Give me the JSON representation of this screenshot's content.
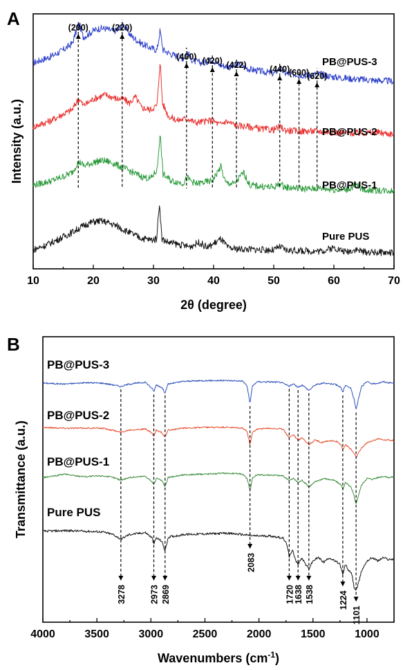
{
  "chart_data": [
    {
      "panel": "A",
      "type": "line",
      "xlabel": "2θ (degree)",
      "ylabel": "Intensity (a.u.)",
      "xlim": [
        10,
        70
      ],
      "xticks": [
        10,
        20,
        30,
        40,
        50,
        60,
        70
      ],
      "y_ticks_shown": false,
      "series": [
        {
          "name": "PB@PUS-3",
          "color": "#2b3ec8",
          "offset": 3.0,
          "x": [
            10,
            13,
            15,
            16.5,
            17.3,
            17.7,
            18.3,
            19,
            20,
            21,
            22,
            23,
            24,
            24.6,
            25,
            25.6,
            26.5,
            28,
            29.5,
            30.6,
            31.1,
            31.6,
            33,
            35,
            35.6,
            36.5,
            38,
            39.8,
            41,
            43,
            44,
            46,
            48,
            50,
            51,
            52,
            54,
            56,
            57.3,
            60,
            63,
            66,
            70
          ],
          "y": [
            0.55,
            0.7,
            0.85,
            1.0,
            1.35,
            1.45,
            1.15,
            1.2,
            1.3,
            1.35,
            1.35,
            1.3,
            1.3,
            1.4,
            1.45,
            1.3,
            1.15,
            1.0,
            0.9,
            0.85,
            1.3,
            0.85,
            0.75,
            0.65,
            0.8,
            0.6,
            0.55,
            0.62,
            0.5,
            0.45,
            0.52,
            0.4,
            0.35,
            0.3,
            0.42,
            0.3,
            0.28,
            0.25,
            0.3,
            0.22,
            0.18,
            0.15,
            0.12
          ]
        },
        {
          "name": "PB@PUS-2",
          "color": "#e8312f",
          "offset": 2.0,
          "x": [
            10,
            13,
            15,
            16.5,
            17.3,
            17.7,
            18.3,
            19,
            20,
            21,
            22,
            23,
            24,
            25,
            26,
            27,
            28,
            29.5,
            30.6,
            31.1,
            31.5,
            32.5,
            34,
            35.6,
            37,
            39.8,
            41,
            42,
            44,
            46,
            48,
            50,
            51,
            52,
            54,
            57.3,
            60,
            64,
            67,
            70
          ],
          "y": [
            0.35,
            0.5,
            0.65,
            0.75,
            0.95,
            1.0,
            0.85,
            0.9,
            1.0,
            1.05,
            1.1,
            1.05,
            1.0,
            1.0,
            0.9,
            1.05,
            0.8,
            0.75,
            0.85,
            1.9,
            0.9,
            0.6,
            0.5,
            0.55,
            0.45,
            0.5,
            0.4,
            0.48,
            0.38,
            0.35,
            0.3,
            0.28,
            0.35,
            0.27,
            0.25,
            0.25,
            0.22,
            0.2,
            0.22,
            0.18
          ]
        },
        {
          "name": "PB@PUS-1",
          "color": "#2a9a3a",
          "offset": 1.0,
          "x": [
            10,
            13,
            15,
            16.5,
            17.3,
            17.8,
            18.5,
            19.5,
            20.5,
            21.5,
            22.5,
            23.5,
            25,
            26.5,
            28,
            29.5,
            30.6,
            31.1,
            31.6,
            33,
            35,
            35.6,
            37,
            39.8,
            41.2,
            42,
            43.5,
            45,
            46,
            48,
            50,
            51,
            52,
            54,
            56,
            57.3,
            60,
            62,
            63.8,
            65,
            67,
            70
          ],
          "y": [
            0.25,
            0.35,
            0.45,
            0.55,
            0.75,
            0.78,
            0.7,
            0.75,
            0.8,
            0.82,
            0.8,
            0.75,
            0.65,
            0.55,
            0.45,
            0.4,
            0.6,
            1.45,
            0.5,
            0.35,
            0.3,
            0.42,
            0.28,
            0.35,
            0.68,
            0.3,
            0.28,
            0.55,
            0.25,
            0.22,
            0.2,
            0.28,
            0.2,
            0.18,
            0.16,
            0.18,
            0.15,
            0.14,
            0.25,
            0.14,
            0.13,
            0.12
          ]
        },
        {
          "name": "Pure PUS",
          "color": "#111111",
          "offset": 0.0,
          "x": [
            10,
            12,
            14,
            16,
            18,
            19,
            20,
            21,
            22,
            23,
            24,
            25,
            26,
            27,
            28,
            29.5,
            30.5,
            31.0,
            31.4,
            32.5,
            34,
            36,
            37.6,
            39,
            41.2,
            42.5,
            44,
            46,
            48,
            50,
            51,
            52,
            54,
            56,
            58,
            60,
            62,
            63.6,
            65,
            67,
            70
          ],
          "y": [
            0.15,
            0.25,
            0.38,
            0.52,
            0.68,
            0.75,
            0.8,
            0.82,
            0.8,
            0.75,
            0.7,
            0.62,
            0.55,
            0.48,
            0.42,
            0.38,
            0.4,
            1.25,
            0.4,
            0.32,
            0.28,
            0.22,
            0.32,
            0.2,
            0.4,
            0.18,
            0.17,
            0.16,
            0.15,
            0.14,
            0.22,
            0.14,
            0.13,
            0.12,
            0.12,
            0.2,
            0.1,
            0.16,
            0.1,
            0.09,
            0.08
          ]
        }
      ],
      "annotations": [
        {
          "label": "(200)",
          "x": 17.5
        },
        {
          "label": "(220)",
          "x": 24.8
        },
        {
          "label": "(400)",
          "x": 35.5
        },
        {
          "label": "(420)",
          "x": 39.8
        },
        {
          "label": "(422)",
          "x": 43.8
        },
        {
          "label": "(440)",
          "x": 51.0
        },
        {
          "label": "(600)",
          "x": 54.2
        },
        {
          "label": "(620)",
          "x": 57.2
        }
      ]
    },
    {
      "panel": "B",
      "type": "line",
      "xlabel": "Wavenumbers (cm",
      "xlabel_sup": "-1",
      "xlabel_end": ")",
      "ylabel": "Transmittance (a.u.)",
      "xlim": [
        4000,
        750
      ],
      "xticks": [
        4000,
        3500,
        3000,
        2500,
        2000,
        1500,
        1000
      ],
      "y_ticks_shown": false,
      "series": [
        {
          "name": "PB@PUS-3",
          "color": "#2b4fb8",
          "offset": 3.0,
          "x": [
            4000,
            3800,
            3600,
            3450,
            3350,
            3278,
            3200,
            3050,
            2990,
            2973,
            2950,
            2900,
            2869,
            2840,
            2700,
            2500,
            2300,
            2150,
            2110,
            2083,
            2060,
            2020,
            1900,
            1800,
            1720,
            1680,
            1638,
            1600,
            1538,
            1480,
            1400,
            1300,
            1240,
            1224,
            1200,
            1150,
            1120,
            1101,
            1080,
            1050,
            1000,
            950,
            900,
            850,
            800,
            750
          ],
          "y": [
            0.92,
            0.9,
            0.93,
            0.92,
            0.88,
            0.84,
            0.9,
            0.94,
            0.8,
            0.72,
            0.88,
            0.82,
            0.7,
            0.9,
            0.96,
            0.98,
            0.98,
            0.97,
            0.85,
            0.45,
            0.85,
            0.95,
            0.95,
            0.94,
            0.85,
            0.9,
            0.82,
            0.88,
            0.75,
            0.88,
            0.92,
            0.9,
            0.82,
            0.7,
            0.88,
            0.8,
            0.55,
            0.3,
            0.55,
            0.85,
            0.95,
            0.9,
            0.92,
            0.95,
            0.93,
            0.92
          ]
        },
        {
          "name": "PB@PUS-2",
          "color": "#e54a2a",
          "offset": 2.0,
          "x": [
            4000,
            3800,
            3600,
            3450,
            3350,
            3278,
            3200,
            3050,
            2990,
            2973,
            2950,
            2900,
            2869,
            2840,
            2700,
            2500,
            2300,
            2150,
            2110,
            2083,
            2060,
            2020,
            1900,
            1780,
            1720,
            1680,
            1638,
            1600,
            1538,
            1480,
            1420,
            1350,
            1280,
            1240,
            1224,
            1200,
            1150,
            1120,
            1101,
            1080,
            1050,
            1000,
            950,
            900,
            850,
            800,
            750
          ],
          "y": [
            0.92,
            0.9,
            0.9,
            0.9,
            0.85,
            0.8,
            0.86,
            0.88,
            0.78,
            0.7,
            0.85,
            0.8,
            0.68,
            0.85,
            0.9,
            0.92,
            0.92,
            0.9,
            0.82,
            0.5,
            0.8,
            0.88,
            0.9,
            0.88,
            0.68,
            0.75,
            0.6,
            0.68,
            0.5,
            0.62,
            0.55,
            0.6,
            0.58,
            0.5,
            0.38,
            0.5,
            0.4,
            0.3,
            0.2,
            0.3,
            0.42,
            0.55,
            0.6,
            0.65,
            0.62,
            0.62,
            0.6
          ]
        },
        {
          "name": "PB@PUS-1",
          "color": "#3a8a3a",
          "offset": 1.0,
          "x": [
            4000,
            3900,
            3800,
            3700,
            3600,
            3450,
            3350,
            3278,
            3200,
            3050,
            2990,
            2973,
            2950,
            2900,
            2869,
            2840,
            2700,
            2500,
            2300,
            2150,
            2110,
            2083,
            2060,
            2020,
            1900,
            1780,
            1720,
            1680,
            1638,
            1600,
            1538,
            1480,
            1400,
            1300,
            1240,
            1224,
            1200,
            1150,
            1120,
            1101,
            1080,
            1050,
            1000,
            950,
            900,
            850,
            800,
            750
          ],
          "y": [
            0.82,
            0.85,
            0.9,
            0.86,
            0.84,
            0.86,
            0.82,
            0.76,
            0.82,
            0.85,
            0.72,
            0.65,
            0.8,
            0.75,
            0.6,
            0.82,
            0.88,
            0.9,
            0.92,
            0.9,
            0.8,
            0.52,
            0.8,
            0.88,
            0.88,
            0.86,
            0.75,
            0.8,
            0.7,
            0.76,
            0.6,
            0.72,
            0.8,
            0.75,
            0.65,
            0.55,
            0.7,
            0.6,
            0.4,
            0.2,
            0.4,
            0.65,
            0.8,
            0.78,
            0.82,
            0.85,
            0.82,
            0.84
          ]
        },
        {
          "name": "Pure PUS",
          "color": "#111111",
          "offset": 0.0,
          "x": [
            4000,
            3800,
            3600,
            3450,
            3350,
            3278,
            3200,
            3050,
            2990,
            2973,
            2950,
            2900,
            2869,
            2840,
            2700,
            2500,
            2300,
            2150,
            2050,
            1900,
            1780,
            1740,
            1720,
            1690,
            1660,
            1638,
            1600,
            1570,
            1538,
            1500,
            1450,
            1400,
            1350,
            1300,
            1250,
            1224,
            1200,
            1170,
            1140,
            1120,
            1101,
            1080,
            1050,
            1000,
            950,
            900,
            850,
            800,
            750
          ],
          "y": [
            0.95,
            0.96,
            0.95,
            0.94,
            0.9,
            0.83,
            0.9,
            0.93,
            0.85,
            0.75,
            0.85,
            0.8,
            0.65,
            0.86,
            0.9,
            0.91,
            0.92,
            0.9,
            0.88,
            0.88,
            0.85,
            0.75,
            0.55,
            0.68,
            0.5,
            0.45,
            0.55,
            0.45,
            0.38,
            0.5,
            0.55,
            0.48,
            0.55,
            0.5,
            0.45,
            0.28,
            0.45,
            0.35,
            0.3,
            0.1,
            0.05,
            0.15,
            0.35,
            0.5,
            0.55,
            0.5,
            0.55,
            0.52,
            0.53
          ]
        }
      ],
      "annotations": [
        {
          "label": "3278",
          "x": 3278
        },
        {
          "label": "2973",
          "x": 2973
        },
        {
          "label": "2869",
          "x": 2869
        },
        {
          "label": "2083",
          "x": 2083
        },
        {
          "label": "1720",
          "x": 1720
        },
        {
          "label": "1638",
          "x": 1638
        },
        {
          "label": "1538",
          "x": 1538
        },
        {
          "label": "1224",
          "x": 1224
        },
        {
          "label": "1101",
          "x": 1101
        }
      ]
    }
  ]
}
